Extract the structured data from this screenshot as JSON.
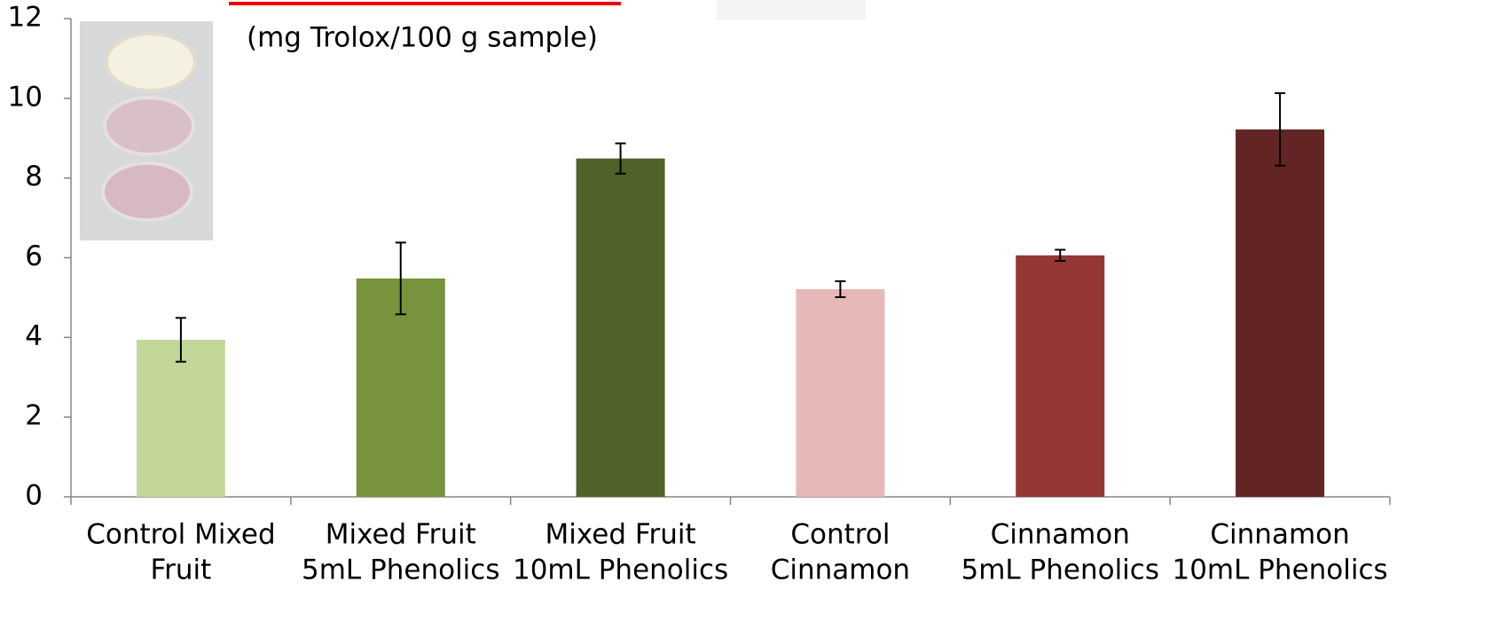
{
  "chart_data": {
    "type": "bar",
    "subtitle": "(mg Trolox/100 g sample)",
    "categories": [
      [
        "Control Mixed",
        "Fruit"
      ],
      [
        "Mixed Fruit",
        "5mL Phenolics"
      ],
      [
        "Mixed Fruit",
        "10mL Phenolics"
      ],
      [
        "Control",
        "Cinnamon"
      ],
      [
        "Cinnamon",
        "5mL Phenolics"
      ],
      [
        "Cinnamon",
        "10mL Phenolics"
      ]
    ],
    "values": [
      3.94,
      5.48,
      8.49,
      5.21,
      6.06,
      9.22
    ],
    "errors": [
      0.55,
      0.9,
      0.38,
      0.2,
      0.14,
      0.91
    ],
    "colors": [
      "#c4d79b",
      "#77933c",
      "#4f6228",
      "#e6b9b8",
      "#953735",
      "#632523"
    ],
    "ylim": [
      0,
      12
    ],
    "yticks": [
      0,
      2,
      4,
      6,
      8,
      10,
      12
    ],
    "grid": false
  }
}
